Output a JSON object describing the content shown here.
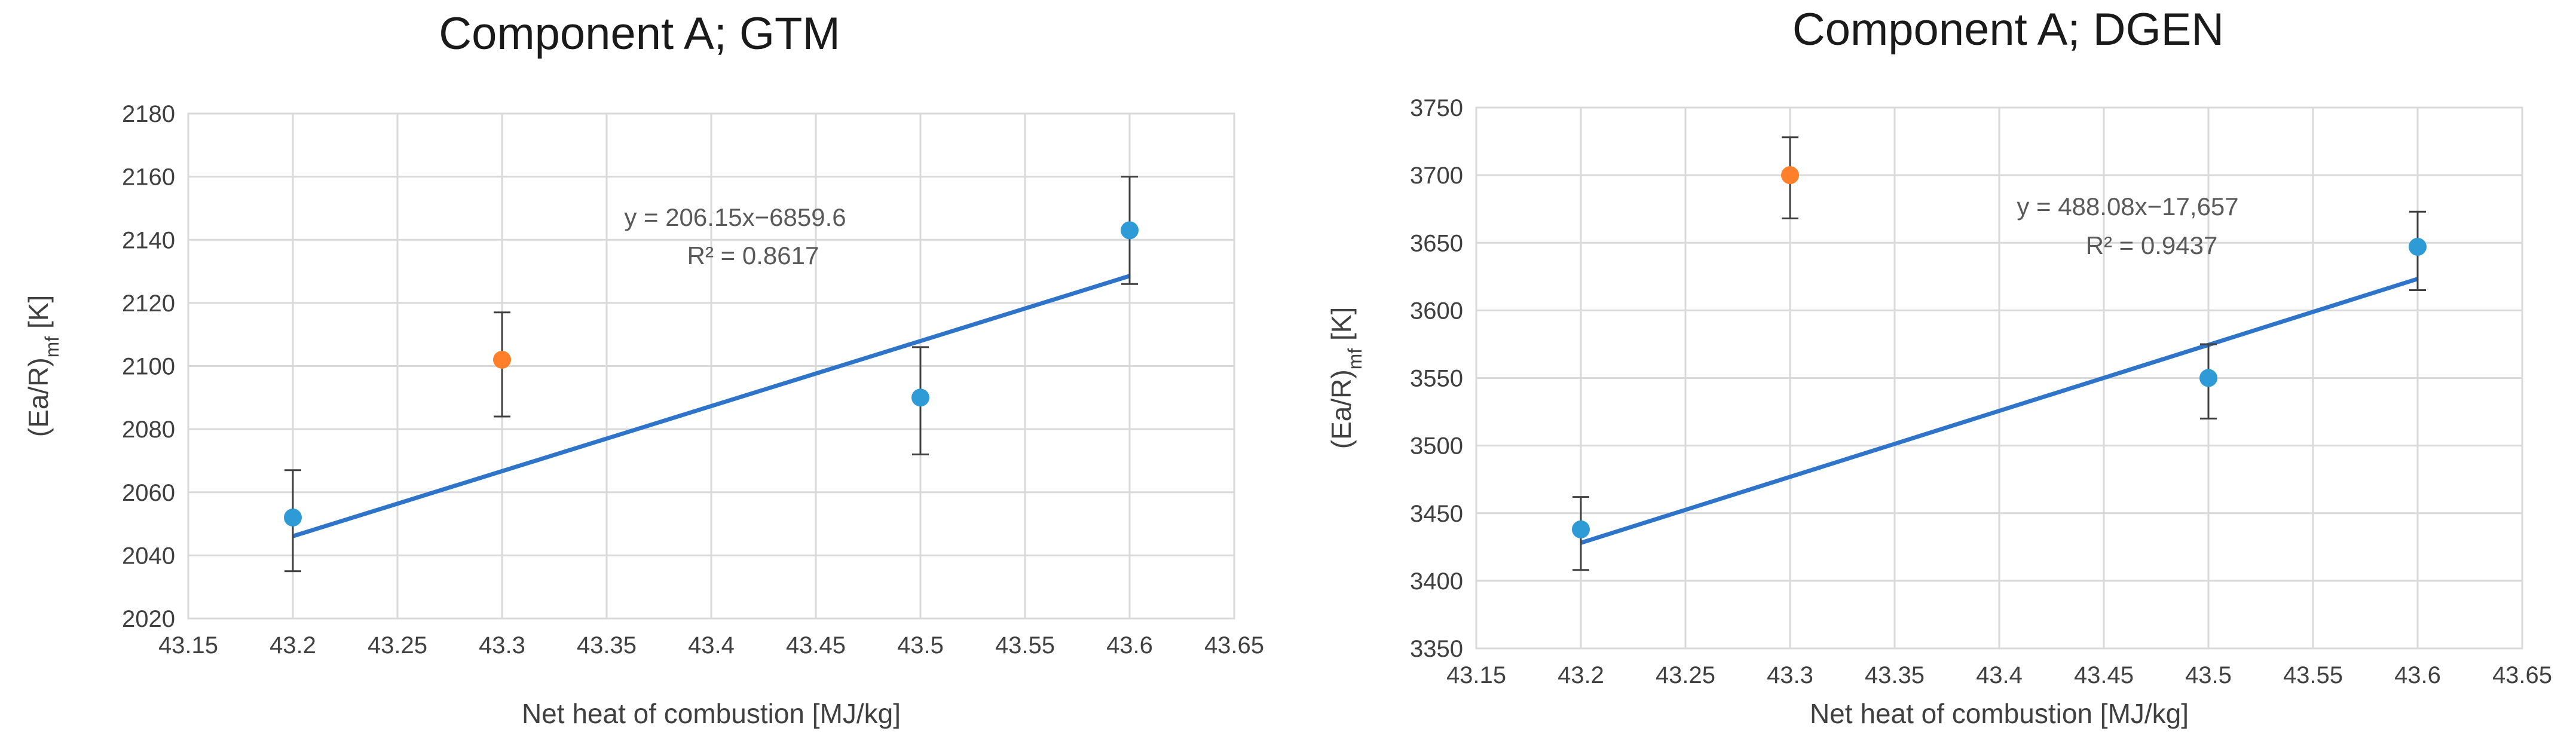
{
  "chart_data": [
    {
      "type": "scatter",
      "title": "Component A; GTM",
      "xlabel": "Net heat of combustion [MJ/kg]",
      "ylabel": "(Ea/R)",
      "ylabel_sub": "mf",
      "ylabel_suffix": " [K]",
      "xlim": [
        43.15,
        43.65
      ],
      "x_step": 0.05,
      "x_ticks": [
        "43.15",
        "43.2",
        "43.25",
        "43.3",
        "43.35",
        "43.4",
        "43.45",
        "43.5",
        "43.55",
        "43.6",
        "43.65"
      ],
      "ylim": [
        2020,
        2180
      ],
      "y_ticks": [
        "2020",
        "2040",
        "2060",
        "2080",
        "2100",
        "2120",
        "2140",
        "2160",
        "2180"
      ],
      "grid": true,
      "points": [
        {
          "x": 43.2,
          "y": 2052,
          "err_low": 2035,
          "err_high": 2067,
          "color": "#2e9bd6"
        },
        {
          "x": 43.3,
          "y": 2102,
          "err_low": 2084,
          "err_high": 2117,
          "color": "#ff7f2a"
        },
        {
          "x": 43.5,
          "y": 2090,
          "err_low": 2072,
          "err_high": 2106,
          "color": "#2e9bd6"
        },
        {
          "x": 43.6,
          "y": 2143,
          "err_low": 2126,
          "err_high": 2160,
          "color": "#2e9bd6"
        }
      ],
      "trendline": {
        "slope": 206.15,
        "intercept": -6859.6,
        "x_range": [
          43.2,
          43.6
        ],
        "color": "#2e75c9"
      },
      "equation": "y = 206.15x−6859.6",
      "r_squared": "R² = 0.8617"
    },
    {
      "type": "scatter",
      "title": "Component A; DGEN",
      "xlabel": "Net heat of combustion [MJ/kg]",
      "ylabel": "(Ea/R)",
      "ylabel_sub": "mf",
      "ylabel_suffix": " [K]",
      "xlim": [
        43.15,
        43.65
      ],
      "x_step": 0.05,
      "x_ticks": [
        "43.15",
        "43.2",
        "43.25",
        "43.3",
        "43.35",
        "43.4",
        "43.45",
        "43.5",
        "43.55",
        "43.6",
        "43.65"
      ],
      "ylim": [
        3350,
        3750
      ],
      "y_ticks": [
        "3350",
        "3400",
        "3450",
        "3500",
        "3550",
        "3600",
        "3650",
        "3700",
        "3750"
      ],
      "grid": true,
      "points": [
        {
          "x": 43.2,
          "y": 3438,
          "err_low": 3408,
          "err_high": 3462,
          "color": "#2e9bd6"
        },
        {
          "x": 43.3,
          "y": 3700,
          "err_low": 3668,
          "err_high": 3728,
          "color": "#ff7f2a"
        },
        {
          "x": 43.5,
          "y": 3550,
          "err_low": 3520,
          "err_high": 3575,
          "color": "#2e9bd6"
        },
        {
          "x": 43.6,
          "y": 3647,
          "err_low": 3615,
          "err_high": 3673,
          "color": "#2e9bd6"
        }
      ],
      "trendline": {
        "slope": 488.08,
        "intercept": -17657,
        "x_range": [
          43.2,
          43.6
        ],
        "color": "#2e75c9"
      },
      "equation": "y = 488.08x−17,657",
      "r_squared": "R² = 0.9437"
    }
  ]
}
